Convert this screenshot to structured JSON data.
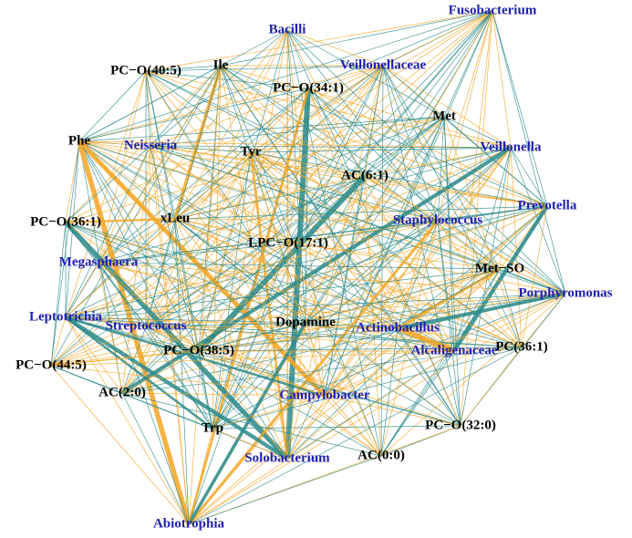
{
  "nodes": [
    {
      "label": "Fusobacterium",
      "color": "#1f1fb0"
    },
    {
      "label": "Bacilli",
      "color": "#1f1fb0"
    },
    {
      "label": "PC−O(40:5)",
      "color": "#000000"
    },
    {
      "label": "Ile",
      "color": "#000000"
    },
    {
      "label": "Veillonellaceae",
      "color": "#1f1fb0"
    },
    {
      "label": "PC−O(34:1)",
      "color": "#000000"
    },
    {
      "label": "Met",
      "color": "#000000"
    },
    {
      "label": "Phe",
      "color": "#000000"
    },
    {
      "label": "Neisseria",
      "color": "#1f1fb0"
    },
    {
      "label": "Tyr",
      "color": "#000000"
    },
    {
      "label": "Veillonella",
      "color": "#1f1fb0"
    },
    {
      "label": "AC(6:1)",
      "color": "#000000"
    },
    {
      "label": "Prevotella",
      "color": "#1f1fb0"
    },
    {
      "label": "PC−O(36:1)",
      "color": "#000000"
    },
    {
      "label": "xLeu",
      "color": "#000000"
    },
    {
      "label": "Staphylococcus",
      "color": "#1f1fb0"
    },
    {
      "label": "LPC−O(17:1)",
      "color": "#000000"
    },
    {
      "label": "Megasphaera",
      "color": "#1f1fb0"
    },
    {
      "label": "Met−SO",
      "color": "#000000"
    },
    {
      "label": "Porphyromonas",
      "color": "#1f1fb0"
    },
    {
      "label": "Leptotrichia",
      "color": "#1f1fb0"
    },
    {
      "label": "Streptococcus",
      "color": "#1f1fb0"
    },
    {
      "label": "Dopamine",
      "color": "#000000"
    },
    {
      "label": "Actinobacillus",
      "color": "#1f1fb0"
    },
    {
      "label": "PC(36:1)",
      "color": "#000000"
    },
    {
      "label": "Alcaligenaceae",
      "color": "#1f1fb0"
    },
    {
      "label": "PC−O(38:5)",
      "color": "#000000"
    },
    {
      "label": "PC−O(44:5)",
      "color": "#000000"
    },
    {
      "label": "AC(2:0)",
      "color": "#000000"
    },
    {
      "label": "Campylobacter",
      "color": "#1f1fb0"
    },
    {
      "label": "Trp",
      "color": "#000000"
    },
    {
      "label": "PC−O(32:0)",
      "color": "#000000"
    },
    {
      "label": "Solobacterium",
      "color": "#1f1fb0"
    },
    {
      "label": "AC(0:0)",
      "color": "#000000"
    },
    {
      "label": "Abiotrophia",
      "color": "#1f1fb0"
    }
  ]
}
